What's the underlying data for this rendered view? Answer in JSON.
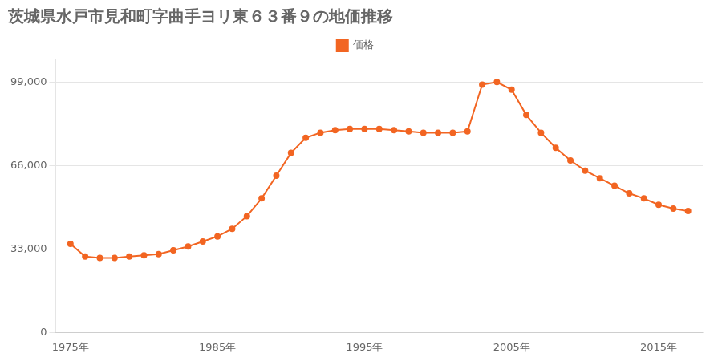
{
  "chart_data": {
    "type": "line",
    "title": "茨城県水戸市見和町字曲手ヨリ東６３番９の地価推移",
    "x": [
      1975,
      1976,
      1977,
      1978,
      1979,
      1980,
      1981,
      1982,
      1983,
      1984,
      1985,
      1986,
      1987,
      1988,
      1989,
      1990,
      1991,
      1992,
      1993,
      1994,
      1995,
      1996,
      1997,
      1998,
      1999,
      2000,
      2001,
      2002,
      2003,
      2004,
      2005,
      2006,
      2007,
      2008,
      2009,
      2010,
      2011,
      2012,
      2013,
      2014,
      2015,
      2016,
      2017
    ],
    "series": [
      {
        "name": "価格",
        "color": "#f26522",
        "marker": "circle",
        "values": [
          35000,
          30000,
          29500,
          29500,
          30000,
          30500,
          31000,
          32500,
          34000,
          36000,
          38000,
          41000,
          46000,
          53000,
          62000,
          71000,
          77000,
          79000,
          80000,
          80500,
          80500,
          80500,
          80000,
          79500,
          79000,
          79000,
          79000,
          79500,
          98000,
          99000,
          96000,
          86000,
          79000,
          73000,
          68000,
          64000,
          61000,
          58000,
          55000,
          53000,
          50500,
          49000,
          48000
        ]
      }
    ],
    "xlim": [
      1974,
      2018
    ],
    "xticks": [
      {
        "value": 1975,
        "label": "1975年"
      },
      {
        "value": 1985,
        "label": "1985年"
      },
      {
        "value": 1995,
        "label": "1995年"
      },
      {
        "value": 2005,
        "label": "2005年"
      },
      {
        "value": 2015,
        "label": "2015年"
      }
    ],
    "ylim": [
      0,
      108000
    ],
    "yticks": [
      0,
      {
        "value": 33000,
        "label": "33,000"
      },
      {
        "value": 66000,
        "label": "66,000"
      },
      {
        "value": 99000,
        "label": "99,000"
      }
    ],
    "grid": "y",
    "legend": "top"
  }
}
